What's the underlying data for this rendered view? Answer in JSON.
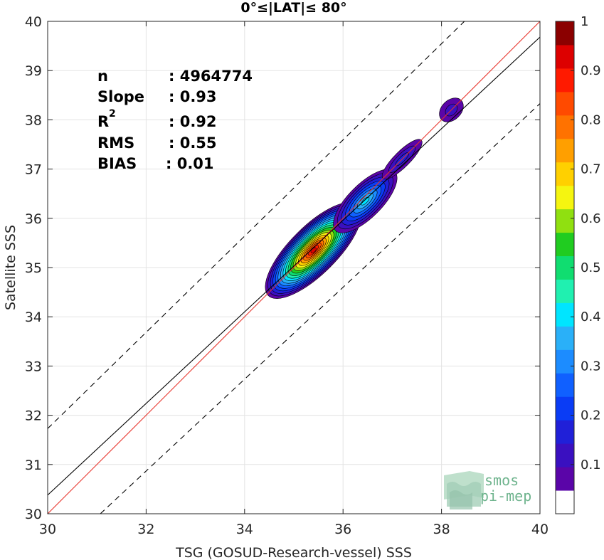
{
  "chart_data": {
    "type": "heatmap",
    "title": "0°≤|LAT|≤ 80°",
    "xlabel": "TSG (GOSUD-Research-vessel) SSS",
    "ylabel": "Satellite SSS",
    "xlim": [
      30,
      40
    ],
    "ylim": [
      30,
      40
    ],
    "xticks": [
      "30",
      "32",
      "34",
      "36",
      "38",
      "40"
    ],
    "yticks": [
      "30",
      "31",
      "32",
      "33",
      "34",
      "35",
      "36",
      "37",
      "38",
      "39",
      "40"
    ],
    "grid": true,
    "stats": [
      {
        "label": "n",
        "value": ": 4964774"
      },
      {
        "label": "Slope",
        "value": ": 0.93"
      },
      {
        "label": "R",
        "sup": "2",
        "value": ": 0.92"
      },
      {
        "label": "RMS",
        "value": ": 0.55"
      },
      {
        "label": "BIAS",
        "value": ": 0.01"
      }
    ],
    "reference_lines": [
      {
        "role": "one-to-one",
        "color": "#e8332a",
        "style": "solid",
        "points": [
          [
            30,
            30
          ],
          [
            40,
            40
          ]
        ]
      },
      {
        "role": "regression",
        "color": "#000000",
        "style": "solid",
        "points": [
          [
            30,
            30.38
          ],
          [
            40,
            39.68
          ]
        ]
      },
      {
        "role": "upper-bound",
        "color": "#000000",
        "style": "dashed",
        "points": [
          [
            30,
            31.73
          ],
          [
            40,
            41.5
          ]
        ]
      },
      {
        "role": "lower-bound",
        "color": "#000000",
        "style": "dashed",
        "points": [
          [
            31.07,
            30
          ],
          [
            40,
            38.33
          ]
        ]
      }
    ],
    "density_clusters": [
      {
        "center": [
          35.4,
          35.35
        ],
        "level": 1.0
      },
      {
        "center": [
          36.45,
          36.35
        ],
        "level": 0.4
      },
      {
        "center": [
          37.2,
          37.2
        ],
        "level": 0.15
      },
      {
        "center": [
          38.2,
          38.2
        ],
        "level": 0.1
      }
    ],
    "colorbar": {
      "range": [
        0,
        1
      ],
      "ticks": [
        "0.1",
        "0.2",
        "0.3",
        "0.4",
        "0.5",
        "0.6",
        "0.7",
        "0.8",
        "0.9",
        "1"
      ],
      "colors": [
        "#ffffff",
        "#5a05a8",
        "#3a10c0",
        "#2020d8",
        "#0a3cf5",
        "#1060ff",
        "#1c8cff",
        "#2ab0f8",
        "#00e5ff",
        "#20f0b0",
        "#10dd70",
        "#20cc20",
        "#90e010",
        "#f5f510",
        "#ffd000",
        "#ff9f00",
        "#ff7200",
        "#ff4a00",
        "#ff1a00",
        "#dd0000",
        "#8b0000"
      ]
    },
    "watermark": {
      "line1": "smos",
      "line2": "pi-mep"
    }
  }
}
